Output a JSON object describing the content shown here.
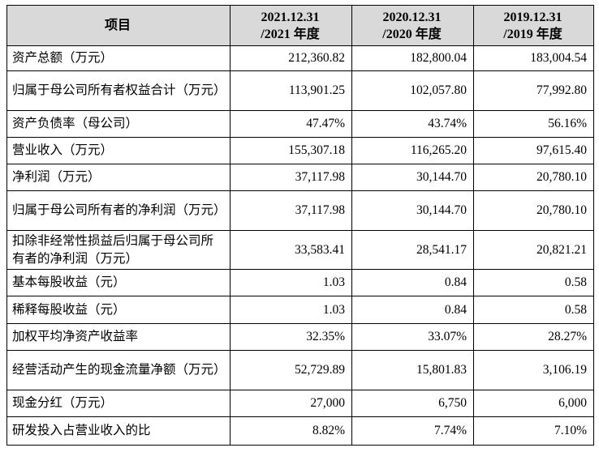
{
  "table": {
    "header": [
      "项目",
      [
        "2021.12.31",
        "/2021 年度"
      ],
      [
        "2020.12.31",
        "/2020 年度"
      ],
      [
        "2019.12.31",
        "/2019 年度"
      ]
    ],
    "rows": [
      [
        "资产总额（万元）",
        "212,360.82",
        "182,800.04",
        "183,004.54"
      ],
      [
        "归属于母公司所有者权益合计（万元）",
        "113,901.25",
        "102,057.80",
        "77,992.80"
      ],
      [
        "资产负债率（母公司）",
        "47.47%",
        "43.74%",
        "56.16%"
      ],
      [
        "营业收入（万元）",
        "155,307.18",
        "116,265.20",
        "97,615.40"
      ],
      [
        "净利润（万元）",
        "37,117.98",
        "30,144.70",
        "20,780.10"
      ],
      [
        "归属于母公司所有者的净利润（万元）",
        "37,117.98",
        "30,144.70",
        "20,780.10"
      ],
      [
        "扣除非经常性损益后归属于母公司所有者的净利润（万元）",
        "33,583.41",
        "28,541.17",
        "20,821.21"
      ],
      [
        "基本每股收益（元）",
        "1.03",
        "0.84",
        "0.58"
      ],
      [
        "稀释每股收益（元）",
        "1.03",
        "0.84",
        "0.58"
      ],
      [
        "加权平均净资产收益率",
        "32.35%",
        "33.07%",
        "28.27%"
      ],
      [
        "经营活动产生的现金流量净额（万元）",
        "52,729.89",
        "15,801.83",
        "3,106.19"
      ],
      [
        "现金分红（万元）",
        "27,000",
        "6,750",
        "6,000"
      ],
      [
        "研发投入占营业收入的比",
        "8.82%",
        "7.74%",
        "7.10%"
      ]
    ]
  }
}
